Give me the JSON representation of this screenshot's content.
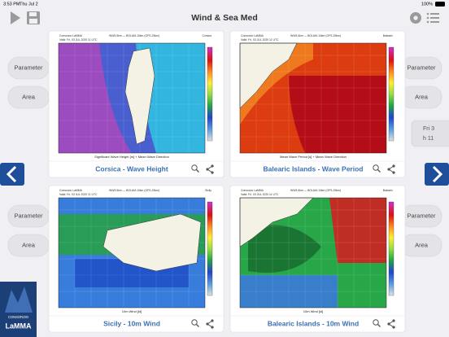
{
  "status_bar": {
    "time": "3:53 PM",
    "date": "Thu Jul 2",
    "battery": "100%"
  },
  "header": {
    "title": "Wind & Sea Med"
  },
  "side_panels": [
    {
      "parameter": "Parameter",
      "area": "Area"
    },
    {
      "parameter": "Parameter",
      "area": "Area"
    },
    {
      "parameter": "Parameter",
      "area": "Area"
    },
    {
      "parameter": "Parameter",
      "area": "Area"
    }
  ],
  "time_selector": {
    "day": "Fri 3",
    "hour": "h 11"
  },
  "cards": [
    {
      "title": "Corsica - Wave Height",
      "source": "Consorzio LaMMA",
      "model": "WW3-5km — BOLAM-10km (GFS-25km)",
      "region": "Corsica",
      "valid": "Valid: Fri, 03 JUL 2020  11 UTC",
      "caption": "Significant Wave Height [m] + Mean Wave Direction"
    },
    {
      "title": "Balearic Islands - Wave Period",
      "source": "Consorzio LaMMA",
      "model": "WW3-5km — BOLAM-10km (GFS-25km)",
      "region": "Balearic",
      "valid": "Valid: Fri, 03 JUL 2020  11 UTC",
      "caption": "Mean Wave Period [s] + Mean Wave Direction"
    },
    {
      "title": "Sicily - 10m Wind",
      "source": "Consorzio LaMMA",
      "model": "WW3-5km — BOLAM-10km (GFS-25km)",
      "region": "Sicily",
      "valid": "Valid: Fri, 03 JUL 2020  11 UTC",
      "caption": "10m Wind [kt]"
    },
    {
      "title": "Balearic Islands - 10m Wind",
      "source": "Consorzio LaMMA",
      "model": "WW3-5km — BOLAM-10km (GFS-25km)",
      "region": "Balearic",
      "valid": "Valid: Fri, 03 JUL 2020  11 UTC",
      "caption": "10m Wind [kt]"
    }
  ],
  "logo": {
    "line1": "CONSORZIO",
    "line2": "LaMMA"
  }
}
